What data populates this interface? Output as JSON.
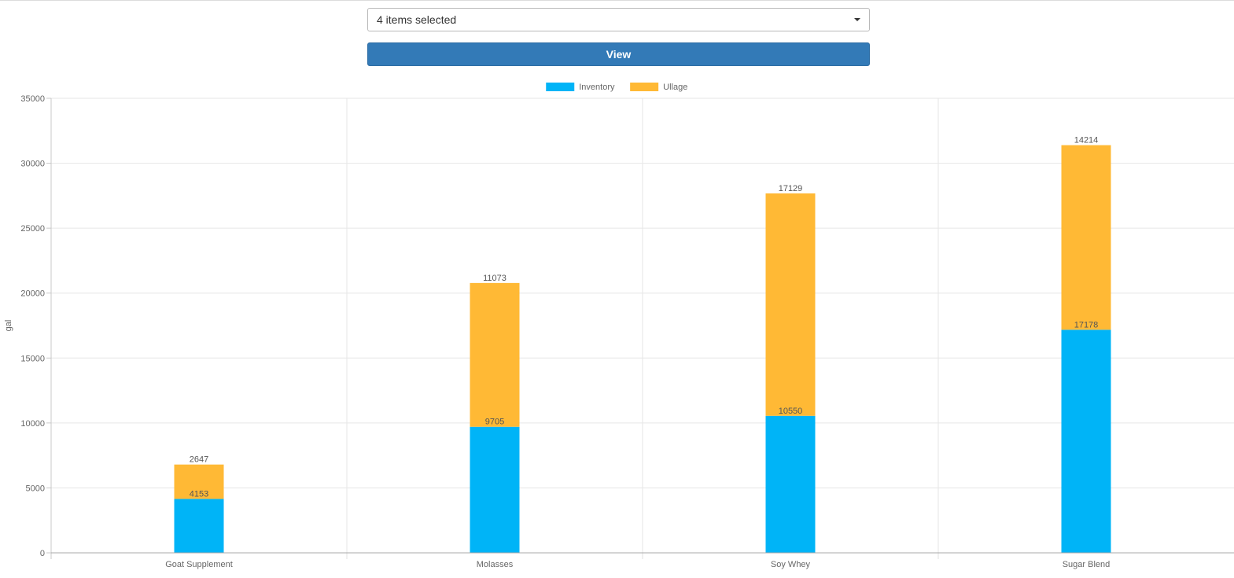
{
  "controls": {
    "select_value": "4 items selected",
    "view_label": "View"
  },
  "colors": {
    "inventory": "#00b4f7",
    "ullage": "#ffb935",
    "button": "#337ab7"
  },
  "chart_data": {
    "type": "bar",
    "stacked": true,
    "categories": [
      "Goat Supplement",
      "Molasses",
      "Soy Whey",
      "Sugar Blend"
    ],
    "series": [
      {
        "name": "Inventory",
        "values": [
          4153,
          9705,
          10550,
          17178
        ]
      },
      {
        "name": "Ullage",
        "values": [
          2647,
          11073,
          17129,
          14214
        ]
      }
    ],
    "ylabel": "gal",
    "ylim": [
      0,
      35000
    ],
    "yticks": [
      0,
      5000,
      10000,
      15000,
      20000,
      25000,
      30000,
      35000
    ],
    "legend_position": "top-center",
    "grid": true,
    "data_labels": true
  }
}
